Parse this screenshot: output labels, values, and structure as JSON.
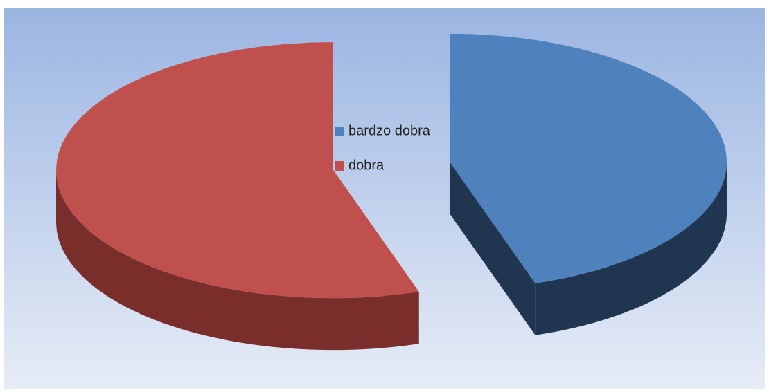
{
  "chart_data": {
    "type": "pie",
    "categories": [
      "bardzo dobra",
      "dobra"
    ],
    "values": [
      45,
      55
    ],
    "colors": [
      "#4f81bd",
      "#c0504d"
    ],
    "side_colors": [
      "#1f3550",
      "#7a2e2b"
    ],
    "legend": "center"
  }
}
